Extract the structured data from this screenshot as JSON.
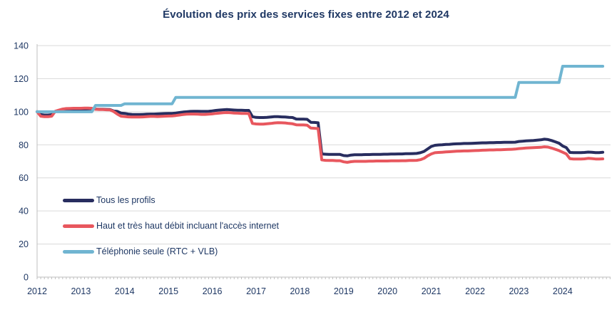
{
  "chart_data": {
    "type": "line",
    "title": "Évolution des prix des services fixes entre 2012 et 2024",
    "x_start_year": 2012,
    "x_resolution": "monthly",
    "x_tick_years": [
      2012,
      2013,
      2014,
      2015,
      2016,
      2017,
      2018,
      2019,
      2020,
      2021,
      2022,
      2023,
      2024
    ],
    "y_ticks": [
      0,
      20,
      40,
      60,
      80,
      100,
      120,
      140
    ],
    "ylim": [
      0,
      140
    ],
    "grid": "horizontal",
    "legend_position": "inside-bottom-left",
    "colors": {
      "title_text": "#1F3864",
      "axis_text": "#1F3864",
      "gridline": "#D9D9D9",
      "axis_line": "#BFBFBF"
    },
    "series": [
      {
        "name": "Tous les profils",
        "color": "#282D5F",
        "values": [
          100.0,
          98.3,
          98.0,
          98.0,
          98.2,
          100.2,
          100.8,
          101.2,
          101.4,
          101.5,
          101.5,
          101.5,
          101.5,
          101.6,
          101.7,
          101.8,
          101.6,
          101.5,
          101.5,
          101.4,
          101.3,
          100.4,
          100.2,
          99.2,
          99.0,
          98.6,
          98.4,
          98.3,
          98.3,
          98.4,
          98.5,
          98.6,
          98.6,
          98.7,
          98.8,
          98.9,
          99.0,
          99.0,
          99.2,
          99.5,
          99.8,
          100.0,
          100.2,
          100.3,
          100.3,
          100.2,
          100.2,
          100.3,
          100.5,
          100.8,
          101.0,
          101.2,
          101.3,
          101.2,
          101.0,
          100.9,
          100.9,
          100.8,
          100.8,
          97.0,
          96.6,
          96.5,
          96.5,
          96.6,
          96.8,
          97.0,
          97.0,
          96.9,
          96.8,
          96.6,
          96.5,
          95.6,
          95.5,
          95.5,
          95.4,
          93.6,
          93.5,
          93.3,
          74.5,
          74.3,
          74.2,
          74.2,
          74.2,
          74.2,
          73.5,
          73.3,
          73.8,
          74.0,
          74.0,
          74.0,
          74.1,
          74.1,
          74.2,
          74.2,
          74.2,
          74.3,
          74.3,
          74.4,
          74.4,
          74.5,
          74.5,
          74.6,
          74.6,
          74.7,
          74.8,
          75.2,
          76.0,
          77.5,
          79.0,
          79.7,
          79.9,
          80.0,
          80.2,
          80.3,
          80.5,
          80.6,
          80.7,
          80.8,
          80.8,
          80.9,
          81.0,
          81.1,
          81.2,
          81.2,
          81.3,
          81.3,
          81.4,
          81.4,
          81.5,
          81.5,
          81.5,
          81.6,
          82.0,
          82.2,
          82.4,
          82.5,
          82.6,
          82.8,
          83.0,
          83.4,
          83.2,
          82.6,
          81.8,
          81.0,
          79.3,
          78.3,
          75.4,
          75.3,
          75.3,
          75.3,
          75.4,
          75.6,
          75.5,
          75.3,
          75.3,
          75.5
        ]
      },
      {
        "name": "Haut et très haut débit incluant l'accès internet",
        "color": "#E8575E",
        "values": [
          100.0,
          97.3,
          97.0,
          97.0,
          97.3,
          100.3,
          101.0,
          101.6,
          101.9,
          102.0,
          102.1,
          102.1,
          102.1,
          102.2,
          102.2,
          102.1,
          101.5,
          101.3,
          101.3,
          101.2,
          101.1,
          100.1,
          98.5,
          97.3,
          97.1,
          96.9,
          96.8,
          96.8,
          96.8,
          96.9,
          97.0,
          97.2,
          97.2,
          97.1,
          97.2,
          97.3,
          97.4,
          97.5,
          97.7,
          98.0,
          98.3,
          98.5,
          98.6,
          98.6,
          98.5,
          98.4,
          98.4,
          98.5,
          98.7,
          99.0,
          99.2,
          99.4,
          99.5,
          99.4,
          99.2,
          99.1,
          99.0,
          99.0,
          98.9,
          92.9,
          92.6,
          92.5,
          92.5,
          92.7,
          92.9,
          93.2,
          93.4,
          93.3,
          93.2,
          92.9,
          92.7,
          92.1,
          92.0,
          92.0,
          91.9,
          90.1,
          90.0,
          89.8,
          70.9,
          70.6,
          70.5,
          70.5,
          70.4,
          70.4,
          69.7,
          69.4,
          69.8,
          70.0,
          70.0,
          70.0,
          70.0,
          70.1,
          70.1,
          70.2,
          70.2,
          70.2,
          70.2,
          70.3,
          70.3,
          70.3,
          70.4,
          70.4,
          70.5,
          70.5,
          70.6,
          71.0,
          71.8,
          73.3,
          74.5,
          75.2,
          75.4,
          75.5,
          75.7,
          75.8,
          76.0,
          76.1,
          76.2,
          76.3,
          76.3,
          76.4,
          76.5,
          76.6,
          76.7,
          76.8,
          76.9,
          76.9,
          77.0,
          77.0,
          77.1,
          77.2,
          77.3,
          77.4,
          77.7,
          77.9,
          78.1,
          78.2,
          78.3,
          78.4,
          78.5,
          78.8,
          78.6,
          78.0,
          77.3,
          76.5,
          75.5,
          74.5,
          71.6,
          71.4,
          71.4,
          71.4,
          71.5,
          71.8,
          71.7,
          71.4,
          71.4,
          71.5
        ]
      },
      {
        "name": "Téléphonie seule (RTC + VLB)",
        "color": "#70B5D1",
        "values": [
          100,
          100,
          100,
          100,
          100,
          100,
          100,
          100,
          100,
          100,
          100,
          100,
          100,
          100,
          100,
          100,
          103.8,
          103.8,
          103.8,
          103.8,
          103.8,
          103.8,
          103.8,
          103.8,
          104.8,
          104.8,
          104.8,
          104.8,
          104.8,
          104.8,
          104.8,
          104.8,
          104.8,
          104.8,
          104.8,
          104.8,
          104.8,
          104.8,
          108.7,
          108.7,
          108.7,
          108.7,
          108.7,
          108.7,
          108.7,
          108.7,
          108.7,
          108.7,
          108.7,
          108.7,
          108.7,
          108.7,
          108.7,
          108.7,
          108.7,
          108.7,
          108.7,
          108.7,
          108.7,
          108.7,
          108.7,
          108.7,
          108.7,
          108.7,
          108.7,
          108.7,
          108.7,
          108.7,
          108.7,
          108.7,
          108.7,
          108.7,
          108.7,
          108.7,
          108.7,
          108.7,
          108.7,
          108.7,
          108.7,
          108.7,
          108.7,
          108.7,
          108.7,
          108.7,
          108.7,
          108.7,
          108.7,
          108.7,
          108.7,
          108.7,
          108.7,
          108.7,
          108.7,
          108.7,
          108.7,
          108.7,
          108.7,
          108.7,
          108.7,
          108.7,
          108.7,
          108.7,
          108.7,
          108.7,
          108.7,
          108.7,
          108.7,
          108.7,
          108.7,
          108.7,
          108.7,
          108.7,
          108.7,
          108.7,
          108.7,
          108.7,
          108.7,
          108.7,
          108.7,
          108.7,
          108.7,
          108.7,
          108.7,
          108.7,
          108.7,
          108.7,
          108.7,
          108.7,
          108.7,
          108.7,
          108.7,
          108.7,
          117.7,
          117.7,
          117.7,
          117.7,
          117.7,
          117.7,
          117.7,
          117.7,
          117.7,
          117.7,
          117.7,
          117.7,
          127.5,
          127.5,
          127.5,
          127.5,
          127.5,
          127.5,
          127.5,
          127.5,
          127.5,
          127.5,
          127.5,
          127.5
        ]
      }
    ]
  }
}
